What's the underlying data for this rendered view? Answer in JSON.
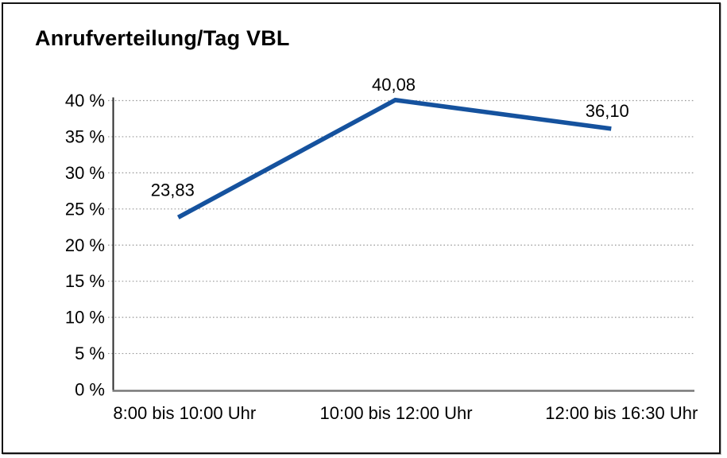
{
  "chart_data": {
    "type": "line",
    "title": "Anrufverteilung/Tag VBL",
    "categories": [
      "8:00 bis 10:00 Uhr",
      "10:00 bis 12:00 Uhr",
      "12:00 bis 16:30 Uhr"
    ],
    "values": [
      23.83,
      40.08,
      36.1
    ],
    "point_labels": [
      "23,83",
      "40,08",
      "36,10"
    ],
    "xlabel": "",
    "ylabel": "",
    "ylim": [
      0,
      40
    ],
    "ytick_step": 5,
    "y_ticks": [
      {
        "value": 40,
        "label": "40 %"
      },
      {
        "value": 35,
        "label": "35 %"
      },
      {
        "value": 30,
        "label": "30 %"
      },
      {
        "value": 25,
        "label": "25 %"
      },
      {
        "value": 20,
        "label": "20 %"
      },
      {
        "value": 15,
        "label": "15 %"
      },
      {
        "value": 10,
        "label": "10 %"
      },
      {
        "value": 5,
        "label": "5 %"
      },
      {
        "value": 0,
        "label": "0 %"
      }
    ],
    "grid": "horizontal-dotted",
    "legend": "none",
    "colors": {
      "line": "#15529E",
      "text": "#000000",
      "gridline": "#9A9A9A",
      "x_axis": "#787878",
      "y_axis": "#2B2B2B",
      "background": "#FFFFFF",
      "border": "#141414"
    }
  }
}
